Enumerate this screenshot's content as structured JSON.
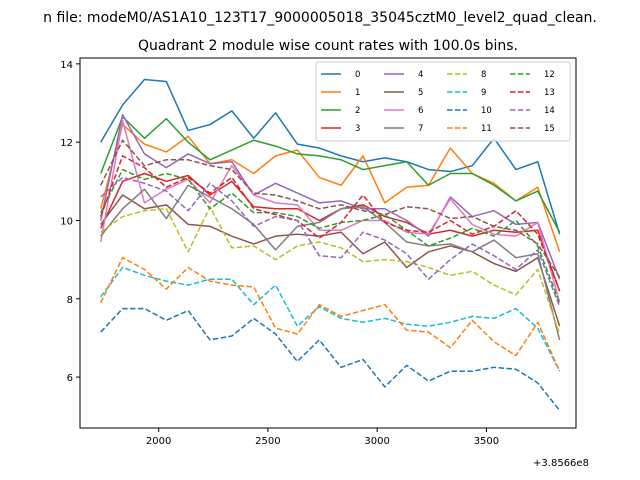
{
  "chart_data": {
    "type": "line",
    "suptitle": "n file: modeM0/AS1A10_123T17_9000005018_35045cztM0_level2_quad_clean.",
    "title": "Quadrant 2 module wise count rates with 100.0s bins.",
    "xlabel": "",
    "ylabel": "",
    "x_offset_label": "+3.8566e8",
    "xlim": [
      1640,
      3910
    ],
    "ylim": [
      4.7,
      14.15
    ],
    "x_ticks": [
      2000,
      2500,
      3000,
      3500
    ],
    "x_tick_labels": [
      "2000",
      "2500",
      "3000",
      "3500"
    ],
    "y_ticks": [
      6,
      8,
      10,
      12,
      14
    ],
    "y_tick_labels": [
      "6",
      "8",
      "10",
      "12",
      "14"
    ],
    "legend_position": "top-right",
    "x": [
      1735,
      1835,
      1935,
      2035,
      2135,
      2235,
      2335,
      2435,
      2535,
      2635,
      2735,
      2835,
      2935,
      3035,
      3135,
      3235,
      3335,
      3435,
      3535,
      3635,
      3735,
      3835
    ],
    "series": [
      {
        "name": "0",
        "color": "#1f77b4",
        "dash": "solid",
        "values": [
          12.0,
          12.95,
          13.6,
          13.55,
          12.3,
          12.45,
          12.8,
          12.1,
          12.75,
          11.95,
          11.85,
          11.65,
          11.5,
          11.6,
          11.5,
          11.3,
          11.25,
          11.4,
          12.1,
          11.3,
          11.5,
          9.65
        ]
      },
      {
        "name": "1",
        "color": "#ff7f0e",
        "dash": "solid",
        "values": [
          10.3,
          12.45,
          11.95,
          11.75,
          12.15,
          11.45,
          11.55,
          11.2,
          11.65,
          11.8,
          11.1,
          10.9,
          11.65,
          10.45,
          10.85,
          10.9,
          11.85,
          11.2,
          10.95,
          10.5,
          10.85,
          9.2
        ]
      },
      {
        "name": "2",
        "color": "#2ca02c",
        "dash": "solid",
        "values": [
          11.2,
          12.65,
          12.1,
          12.6,
          12.0,
          11.55,
          11.8,
          12.05,
          11.9,
          11.7,
          11.65,
          11.55,
          11.3,
          11.4,
          11.5,
          10.9,
          11.2,
          11.2,
          10.9,
          10.5,
          10.75,
          9.7
        ]
      },
      {
        "name": "3",
        "color": "#d62728",
        "dash": "solid",
        "values": [
          9.8,
          11.0,
          11.2,
          11.0,
          11.15,
          10.65,
          11.0,
          10.35,
          10.3,
          10.3,
          10.0,
          10.3,
          10.4,
          10.1,
          9.95,
          9.65,
          9.75,
          9.6,
          9.75,
          9.7,
          9.75,
          8.2
        ]
      },
      {
        "name": "4",
        "color": "#9467bd",
        "dash": "solid",
        "values": [
          10.0,
          12.7,
          11.7,
          11.35,
          11.7,
          11.45,
          11.5,
          10.65,
          10.95,
          10.7,
          10.45,
          10.5,
          10.3,
          10.3,
          10.0,
          9.6,
          10.6,
          10.1,
          10.25,
          9.9,
          9.95,
          8.5
        ]
      },
      {
        "name": "5",
        "color": "#8c564b",
        "dash": "solid",
        "values": [
          9.9,
          10.65,
          10.3,
          10.4,
          9.9,
          9.85,
          9.6,
          9.4,
          9.6,
          9.65,
          9.6,
          9.7,
          9.15,
          9.45,
          8.8,
          9.2,
          9.35,
          9.2,
          8.9,
          8.7,
          9.05,
          7.3
        ]
      },
      {
        "name": "6",
        "color": "#e377c2",
        "dash": "solid",
        "values": [
          9.45,
          12.55,
          10.45,
          10.8,
          11.05,
          10.45,
          11.4,
          10.65,
          10.45,
          10.4,
          9.75,
          9.75,
          10.0,
          10.0,
          9.7,
          9.65,
          10.55,
          9.9,
          9.65,
          9.6,
          9.95,
          7.9
        ]
      },
      {
        "name": "7",
        "color": "#7f7f7f",
        "dash": "solid",
        "values": [
          9.6,
          10.3,
          10.8,
          10.05,
          10.9,
          10.6,
          10.3,
          9.9,
          9.25,
          9.85,
          9.95,
          10.3,
          10.35,
          9.95,
          9.45,
          9.35,
          9.4,
          9.2,
          9.5,
          9.05,
          9.15,
          6.95
        ]
      },
      {
        "name": "8",
        "color": "#bcbd22",
        "dash": "dashed",
        "values": [
          9.7,
          10.1,
          10.25,
          10.3,
          9.2,
          10.35,
          9.3,
          9.35,
          9.0,
          9.35,
          9.45,
          9.3,
          8.95,
          9.0,
          8.95,
          8.8,
          8.6,
          8.7,
          8.35,
          8.1,
          8.75,
          7.1
        ]
      },
      {
        "name": "9",
        "color": "#17becf",
        "dash": "dashed",
        "values": [
          8.05,
          8.8,
          8.6,
          8.45,
          8.35,
          8.5,
          8.5,
          7.85,
          8.35,
          7.3,
          7.8,
          7.5,
          7.4,
          7.5,
          7.35,
          7.3,
          7.4,
          7.55,
          7.5,
          7.75,
          7.25,
          6.15
        ]
      },
      {
        "name": "10",
        "color": "#1f77b4",
        "dash": "dashed",
        "values": [
          7.15,
          7.75,
          7.75,
          7.45,
          7.7,
          6.95,
          7.05,
          7.5,
          7.1,
          6.4,
          6.95,
          6.25,
          6.45,
          5.75,
          6.3,
          5.9,
          6.15,
          6.15,
          6.25,
          6.2,
          5.85,
          5.15
        ]
      },
      {
        "name": "11",
        "color": "#ff7f0e",
        "dash": "dashed",
        "values": [
          7.9,
          9.05,
          8.75,
          8.25,
          8.8,
          8.45,
          8.35,
          8.3,
          7.25,
          7.1,
          7.85,
          7.55,
          7.7,
          7.85,
          7.2,
          7.15,
          6.75,
          7.45,
          6.9,
          6.55,
          7.4,
          6.15
        ]
      },
      {
        "name": "12",
        "color": "#2ca02c",
        "dash": "dashed",
        "values": [
          10.2,
          11.3,
          11.05,
          11.2,
          11.05,
          10.3,
          10.7,
          10.2,
          10.2,
          10.1,
          9.8,
          9.95,
          10.0,
          10.15,
          9.75,
          9.35,
          9.55,
          9.8,
          9.6,
          10.0,
          9.35,
          7.9
        ]
      },
      {
        "name": "13",
        "color": "#d62728",
        "dash": "dashed",
        "values": [
          10.1,
          11.65,
          11.35,
          10.85,
          11.1,
          10.7,
          11.1,
          10.3,
          10.15,
          10.0,
          9.55,
          9.95,
          10.65,
          9.95,
          9.75,
          9.7,
          10.0,
          9.65,
          9.85,
          10.25,
          9.65,
          8.2
        ]
      },
      {
        "name": "14",
        "color": "#9467bd",
        "dash": "dashed",
        "values": [
          10.6,
          11.1,
          10.95,
          10.75,
          10.25,
          10.95,
          10.5,
          9.85,
          10.1,
          10.0,
          9.1,
          9.05,
          9.7,
          9.5,
          9.15,
          8.5,
          9.0,
          9.4,
          9.1,
          8.75,
          9.25,
          7.8
        ]
      },
      {
        "name": "15",
        "color": "#8c564b",
        "dash": "dashed",
        "values": [
          10.9,
          12.05,
          11.4,
          11.55,
          11.55,
          11.4,
          11.3,
          10.7,
          10.65,
          10.5,
          10.3,
          10.4,
          10.25,
          10.15,
          10.35,
          10.3,
          10.05,
          10.1,
          9.85,
          9.75,
          9.4,
          8.55
        ]
      }
    ]
  }
}
